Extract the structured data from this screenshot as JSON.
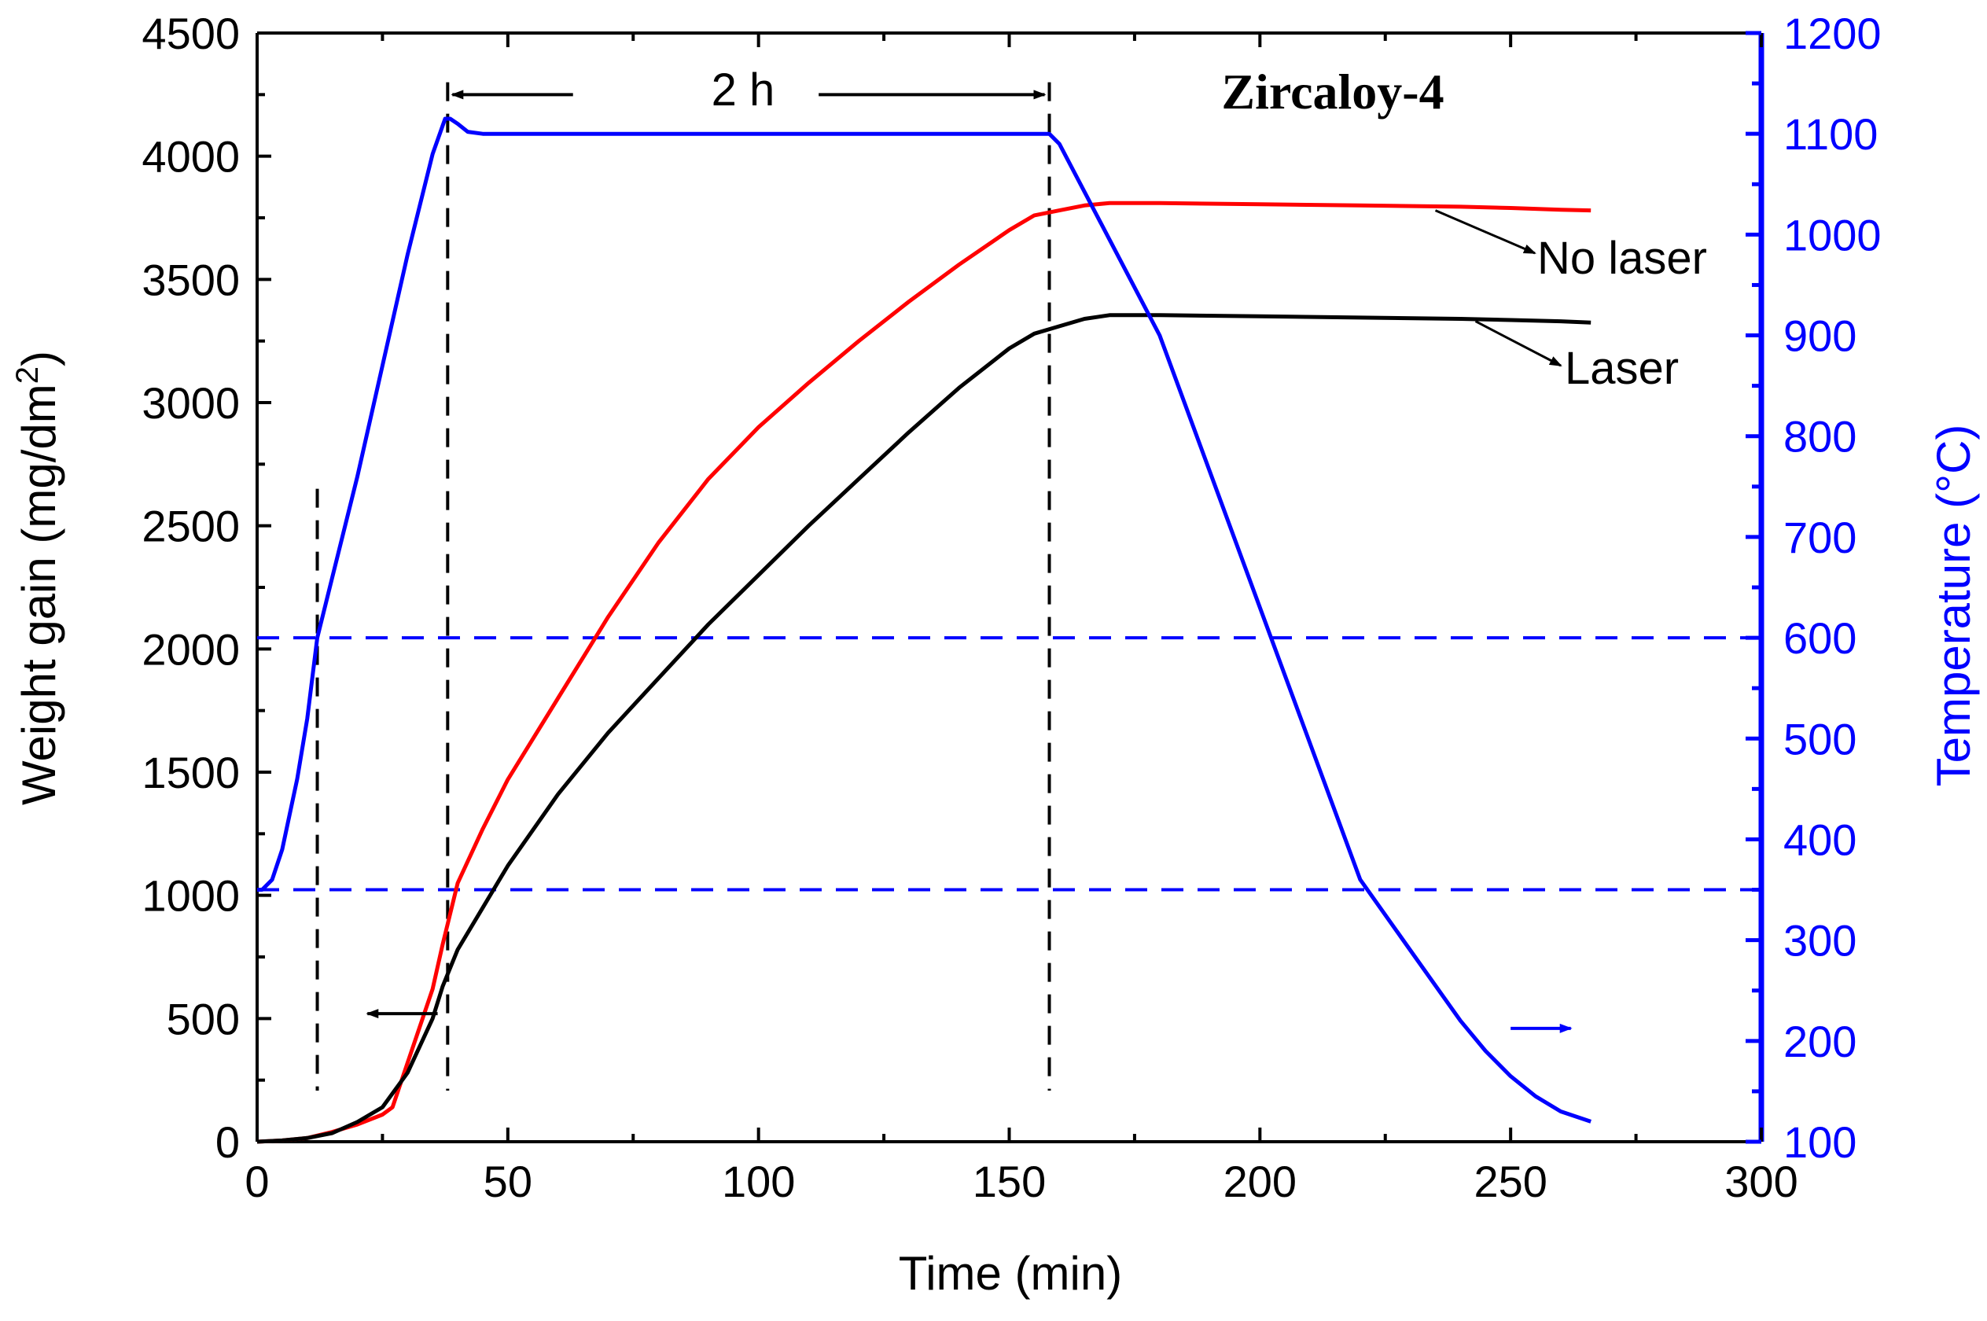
{
  "chart_data": {
    "type": "line",
    "title": "Zircaloy-4",
    "xlabel": "Time (min)",
    "ylabel_left": "Weight gain (mg/dm",
    "ylabel_left_sup": "2",
    "ylabel_left_end": ")",
    "ylabel_right": "Temperature (°C)",
    "xlim": [
      0,
      300
    ],
    "ylim_left": [
      0,
      4500
    ],
    "ylim_right": [
      100,
      1200
    ],
    "x_ticks": [
      0,
      50,
      100,
      150,
      200,
      250,
      300
    ],
    "x_tick_labels": [
      "0",
      "50",
      "100",
      "150",
      "200",
      "250",
      "300"
    ],
    "y_left_ticks": [
      0,
      500,
      1000,
      1500,
      2000,
      2500,
      3000,
      3500,
      4000,
      4500
    ],
    "y_left_tick_labels": [
      "0",
      "500",
      "1000",
      "1500",
      "2000",
      "2500",
      "3000",
      "3500",
      "4000",
      "4500"
    ],
    "y_right_ticks": [
      100,
      200,
      300,
      400,
      500,
      600,
      700,
      800,
      900,
      1000,
      1100,
      1200
    ],
    "y_right_tick_labels": [
      "100",
      "200",
      "300",
      "400",
      "500",
      "600",
      "700",
      "800",
      "900",
      "1000",
      "1100",
      "1200"
    ],
    "colors": {
      "no_laser": "#ff0000",
      "laser": "#000000",
      "temperature": "#0000ff",
      "axis_right": "#0000ff",
      "axis": "#000000"
    },
    "series": [
      {
        "name": "No laser",
        "axis": "left",
        "color": "#ff0000",
        "x": [
          0,
          5,
          10,
          15,
          20,
          25,
          27,
          30,
          35,
          37,
          40,
          45,
          50,
          60,
          70,
          80,
          90,
          100,
          110,
          120,
          130,
          140,
          150,
          155,
          160,
          165,
          170,
          180,
          200,
          220,
          240,
          250,
          260,
          266
        ],
        "y": [
          0,
          5,
          15,
          40,
          70,
          110,
          140,
          320,
          620,
          800,
          1050,
          1270,
          1470,
          1800,
          2130,
          2430,
          2690,
          2900,
          3080,
          3250,
          3410,
          3560,
          3700,
          3760,
          3780,
          3800,
          3810,
          3810,
          3805,
          3800,
          3795,
          3790,
          3783,
          3780
        ]
      },
      {
        "name": "Laser",
        "axis": "left",
        "color": "#000000",
        "x": [
          0,
          5,
          10,
          15,
          20,
          25,
          30,
          35,
          37,
          40,
          45,
          50,
          60,
          70,
          80,
          90,
          100,
          110,
          120,
          130,
          140,
          150,
          155,
          160,
          165,
          170,
          180,
          200,
          220,
          240,
          250,
          260,
          266
        ],
        "y": [
          0,
          5,
          15,
          35,
          80,
          140,
          280,
          500,
          630,
          780,
          950,
          1120,
          1410,
          1660,
          1880,
          2100,
          2300,
          2500,
          2690,
          2880,
          3060,
          3220,
          3280,
          3310,
          3340,
          3355,
          3355,
          3350,
          3345,
          3340,
          3335,
          3330,
          3325
        ]
      },
      {
        "name": "Temperature",
        "axis": "right",
        "color": "#0000ff",
        "x": [
          0,
          1,
          3,
          5,
          8,
          10,
          12,
          15,
          20,
          25,
          30,
          35,
          37.5,
          38.5,
          40,
          42,
          45,
          60,
          80,
          100,
          120,
          140,
          158,
          160,
          180,
          200,
          220,
          230,
          240,
          245,
          250,
          255,
          260,
          266
        ],
        "y": [
          350,
          350,
          360,
          390,
          460,
          520,
          600,
          660,
          760,
          870,
          980,
          1080,
          1115,
          1115,
          1110,
          1102,
          1100,
          1100,
          1100,
          1100,
          1100,
          1100,
          1100,
          1090,
          900,
          630,
          360,
          290,
          220,
          190,
          165,
          145,
          130,
          120
        ]
      }
    ],
    "reference_lines": {
      "horizontal_right_axis": [
        600,
        350
      ],
      "vertical_x": [
        12,
        38,
        158
      ],
      "vertical_top_left": [
        2650,
        4300,
        4300
      ]
    },
    "annotations": [
      {
        "text": "2 h",
        "from_x": 38,
        "to_x": 158,
        "y_left": 4250
      },
      {
        "text": "No laser",
        "arrow_from_x": 235,
        "arrow_from_y": 3780,
        "target_series": "No laser"
      },
      {
        "text": "Laser",
        "arrow_from_x": 243,
        "arrow_from_y": 3330,
        "target_series": "Laser"
      },
      {
        "text": "",
        "arrow_to_x": 22,
        "arrow_y_left": 520,
        "direction": "left",
        "color": "#000000"
      },
      {
        "text": "",
        "arrow_to_x": 262,
        "arrow_y_left": 460,
        "direction": "right",
        "color": "#0000ff"
      }
    ]
  }
}
